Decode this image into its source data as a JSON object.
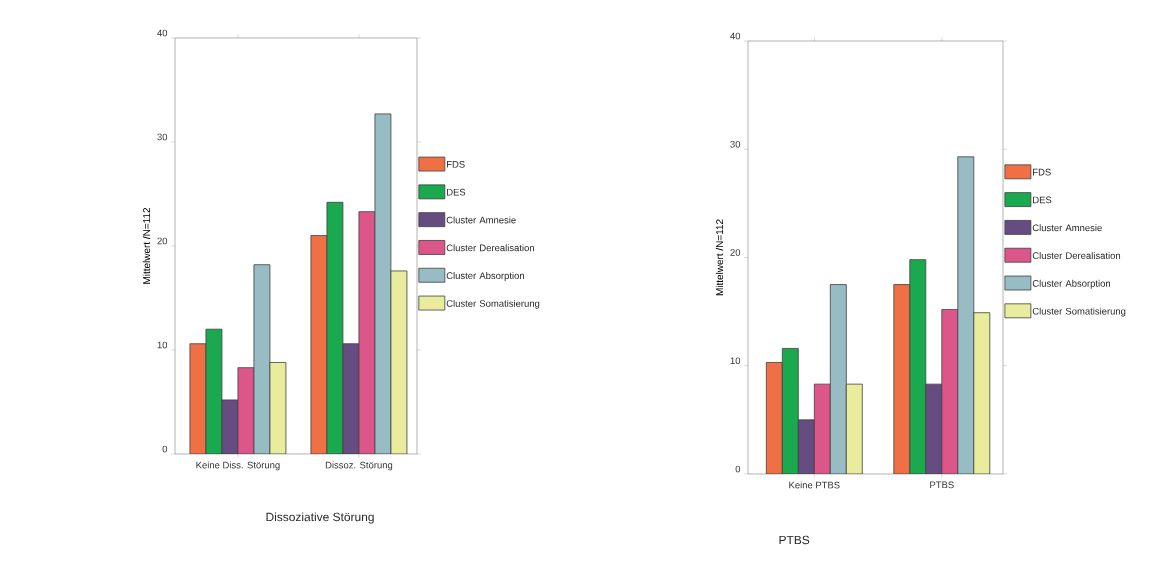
{
  "chart_data": [
    {
      "type": "bar",
      "xlabel": "Dissoziative Störung",
      "ylabel": "Mittelwert /N=112",
      "categories": [
        "Keine Diss. Störung",
        "Dissoz. Störung"
      ],
      "ylim": [
        0,
        40
      ],
      "yticks": [
        0,
        10,
        20,
        30,
        40
      ],
      "legend": "right",
      "series": [
        {
          "name": "FDS",
          "color": "#ee7044",
          "values": [
            10.6,
            21.0
          ]
        },
        {
          "name": "DES",
          "color": "#1aa94e",
          "values": [
            12.0,
            24.2
          ]
        },
        {
          "name": "Cluster Amnesie",
          "color": "#654d82",
          "values": [
            5.2,
            10.6
          ]
        },
        {
          "name": "Cluster Derealisation",
          "color": "#dc568a",
          "values": [
            8.3,
            23.3
          ]
        },
        {
          "name": "Cluster Absorption",
          "color": "#98bcc3",
          "values": [
            18.2,
            32.7
          ]
        },
        {
          "name": "Cluster Somatisierung",
          "color": "#e8ec9c",
          "values": [
            8.8,
            17.6
          ]
        }
      ]
    },
    {
      "type": "bar",
      "xlabel": "PTBS",
      "ylabel": "Mittelwert /N=112",
      "categories": [
        "Keine PTBS",
        "PTBS"
      ],
      "ylim": [
        0,
        40
      ],
      "yticks": [
        0,
        10,
        20,
        30,
        40
      ],
      "legend": "right",
      "series": [
        {
          "name": "FDS",
          "color": "#ee7044",
          "values": [
            10.3,
            17.5
          ]
        },
        {
          "name": "DES",
          "color": "#1aa94e",
          "values": [
            11.6,
            19.8
          ]
        },
        {
          "name": "Cluster Amnesie",
          "color": "#654d82",
          "values": [
            5.0,
            8.3
          ]
        },
        {
          "name": "Cluster Derealisation",
          "color": "#dc568a",
          "values": [
            8.3,
            15.2
          ]
        },
        {
          "name": "Cluster Absorption",
          "color": "#98bcc3",
          "values": [
            17.5,
            29.3
          ]
        },
        {
          "name": "Cluster Somatisierung",
          "color": "#e8ec9c",
          "values": [
            8.3,
            14.9
          ]
        }
      ]
    }
  ]
}
